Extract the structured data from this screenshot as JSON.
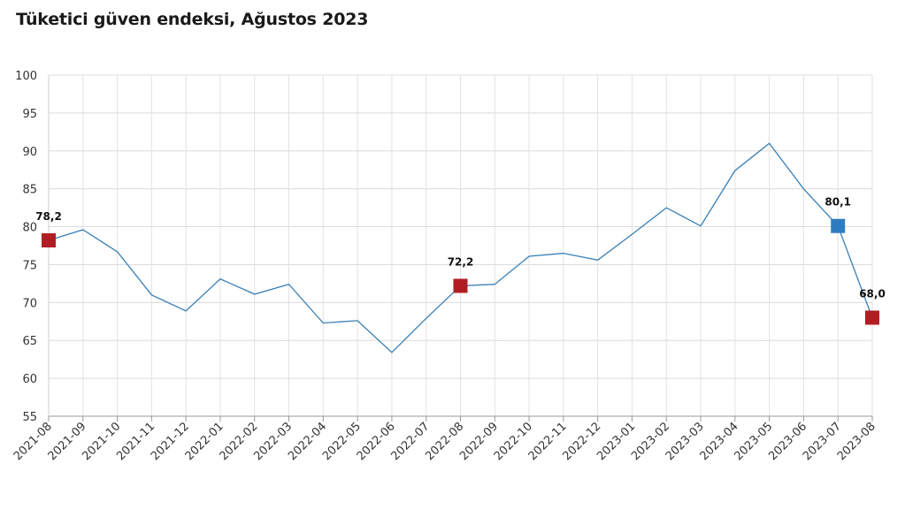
{
  "chart_data": {
    "type": "line",
    "title": "Tüketici güven endeksi, Ağustos 2023",
    "xlabel": "",
    "ylabel": "",
    "ylim": [
      55,
      100
    ],
    "yticks": [
      55,
      60,
      65,
      70,
      75,
      80,
      85,
      90,
      95,
      100
    ],
    "grid": true,
    "categories": [
      "2021-08",
      "2021-09",
      "2021-10",
      "2021-11",
      "2021-12",
      "2022-01",
      "2022-02",
      "2022-03",
      "2022-04",
      "2022-05",
      "2022-06",
      "2022-07",
      "2022-08",
      "2022-09",
      "2022-10",
      "2022-11",
      "2022-12",
      "2023-01",
      "2023-02",
      "2023-03",
      "2023-04",
      "2023-05",
      "2023-06",
      "2023-07",
      "2023-08"
    ],
    "series": [
      {
        "values": [
          78.2,
          79.6,
          76.7,
          71.0,
          68.9,
          73.1,
          71.1,
          72.4,
          67.3,
          67.6,
          63.4,
          67.9,
          72.2,
          72.4,
          76.1,
          76.5,
          75.6,
          79.0,
          82.5,
          80.1,
          87.4,
          91.0,
          85.0,
          80.1,
          68.0
        ],
        "color": "#3a7fb5"
      }
    ],
    "highlights": [
      {
        "category": "2021-08",
        "label": "78,2",
        "color": "#b01e23"
      },
      {
        "category": "2022-08",
        "label": "72,2",
        "color": "#b01e23"
      },
      {
        "category": "2023-07",
        "label": "80,1",
        "color": "#2e7cbf"
      },
      {
        "category": "2023-08",
        "label": "68,0",
        "color": "#b01e23"
      }
    ]
  }
}
